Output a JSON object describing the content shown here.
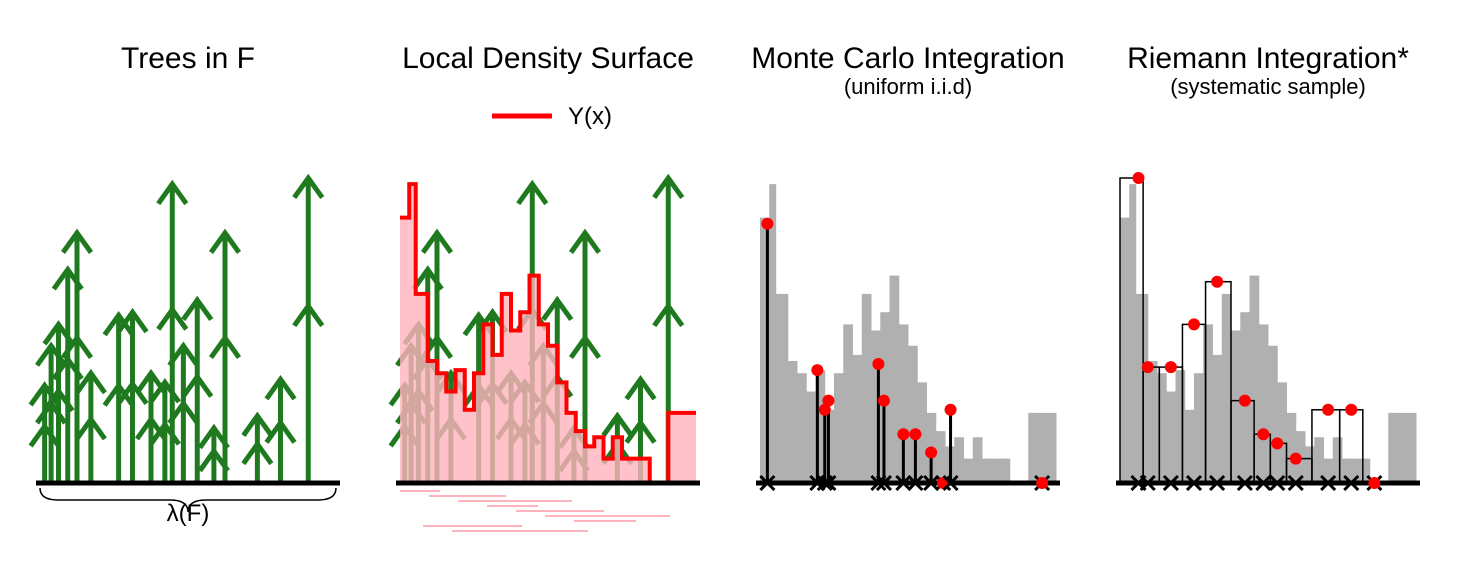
{
  "colors": {
    "tree": "#1f7a1f",
    "surface_line": "#ff0000",
    "surface_fill": "#ffb3bd",
    "hist_fill": "#b0b0b0",
    "point": "#ff0000",
    "axis": "#000000"
  },
  "panels": [
    {
      "title": "Trees in F",
      "subtitle": ""
    },
    {
      "title": "Local Density Surface",
      "subtitle": ""
    },
    {
      "title": "Monte Carlo Integration",
      "subtitle": "(uniform i.i.d)"
    },
    {
      "title": "Riemann Integration*",
      "subtitle": "(systematic sample)"
    }
  ],
  "legend": {
    "label": "Y(x)"
  },
  "brace_label": "λ(F)",
  "chart_data": {
    "type": "diagram",
    "trees": [
      {
        "x": 0.5,
        "h": 0.32
      },
      {
        "x": 1.2,
        "h": 0.45
      },
      {
        "x": 2.0,
        "h": 0.52
      },
      {
        "x": 3.0,
        "h": 0.7
      },
      {
        "x": 4.0,
        "h": 0.82
      },
      {
        "x": 5.5,
        "h": 0.36
      },
      {
        "x": 8.5,
        "h": 0.55
      },
      {
        "x": 10.0,
        "h": 0.56
      },
      {
        "x": 12.0,
        "h": 0.36
      },
      {
        "x": 13.5,
        "h": 0.33
      },
      {
        "x": 14.3,
        "h": 0.98
      },
      {
        "x": 15.5,
        "h": 0.45
      },
      {
        "x": 17.0,
        "h": 0.6
      },
      {
        "x": 18.8,
        "h": 0.18
      },
      {
        "x": 20.0,
        "h": 0.82
      },
      {
        "x": 23.5,
        "h": 0.22
      },
      {
        "x": 26.0,
        "h": 0.34
      },
      {
        "x": 29.0,
        "h": 1.0
      }
    ],
    "surface_steps": [
      {
        "x0": 0.0,
        "x1": 1.0,
        "y": 0.87
      },
      {
        "x0": 1.0,
        "x1": 1.7,
        "y": 0.98
      },
      {
        "x0": 1.7,
        "x1": 2.1,
        "y": 0.62
      },
      {
        "x0": 2.1,
        "x1": 3.0,
        "y": 0.62
      },
      {
        "x0": 3.0,
        "x1": 4.0,
        "y": 0.4
      },
      {
        "x0": 4.0,
        "x1": 5.0,
        "y": 0.36
      },
      {
        "x0": 5.0,
        "x1": 6.0,
        "y": 0.3
      },
      {
        "x0": 6.0,
        "x1": 7.0,
        "y": 0.37
      },
      {
        "x0": 7.0,
        "x1": 8.0,
        "y": 0.24
      },
      {
        "x0": 8.0,
        "x1": 9.0,
        "y": 0.36
      },
      {
        "x0": 9.0,
        "x1": 10.0,
        "y": 0.52
      },
      {
        "x0": 10.0,
        "x1": 11.0,
        "y": 0.42
      },
      {
        "x0": 11.0,
        "x1": 12.0,
        "y": 0.62
      },
      {
        "x0": 12.0,
        "x1": 13.0,
        "y": 0.5
      },
      {
        "x0": 13.0,
        "x1": 14.0,
        "y": 0.56
      },
      {
        "x0": 14.0,
        "x1": 15.0,
        "y": 0.68
      },
      {
        "x0": 15.0,
        "x1": 16.0,
        "y": 0.52
      },
      {
        "x0": 16.0,
        "x1": 17.0,
        "y": 0.45
      },
      {
        "x0": 17.0,
        "x1": 18.0,
        "y": 0.33
      },
      {
        "x0": 18.0,
        "x1": 19.0,
        "y": 0.23
      },
      {
        "x0": 19.0,
        "x1": 20.0,
        "y": 0.17
      },
      {
        "x0": 20.0,
        "x1": 21.0,
        "y": 0.12
      },
      {
        "x0": 21.0,
        "x1": 22.0,
        "y": 0.15
      },
      {
        "x0": 22.0,
        "x1": 23.0,
        "y": 0.08
      },
      {
        "x0": 23.0,
        "x1": 24.0,
        "y": 0.15
      },
      {
        "x0": 24.0,
        "x1": 25.0,
        "y": 0.08
      },
      {
        "x0": 25.0,
        "x1": 26.0,
        "y": 0.08
      },
      {
        "x0": 26.0,
        "x1": 27.0,
        "y": 0.08
      },
      {
        "x0": 27.0,
        "x1": 28.0,
        "y": 0.0
      },
      {
        "x0": 28.0,
        "x1": 29.0,
        "y": 0.0
      },
      {
        "x0": 29.0,
        "x1": 30.0,
        "y": 0.23
      },
      {
        "x0": 30.0,
        "x1": 32.0,
        "y": 0.23
      }
    ],
    "x_range": [
      0,
      32
    ],
    "mc_samples": [
      {
        "x": 0.8,
        "y": 0.85
      },
      {
        "x": 6.2,
        "y": 0.37
      },
      {
        "x": 7.0,
        "y": 0.24
      },
      {
        "x": 7.4,
        "y": 0.27
      },
      {
        "x": 12.8,
        "y": 0.39
      },
      {
        "x": 13.4,
        "y": 0.27
      },
      {
        "x": 15.5,
        "y": 0.16
      },
      {
        "x": 16.8,
        "y": 0.16
      },
      {
        "x": 18.5,
        "y": 0.1
      },
      {
        "x": 19.8,
        "y": 0.0
      },
      {
        "x": 20.6,
        "y": 0.24
      },
      {
        "x": 30.5,
        "y": 0.0
      }
    ],
    "riemann_samples": [
      {
        "x": 2.0,
        "y": 1.0
      },
      {
        "x": 3.0,
        "y": 0.38
      },
      {
        "x": 5.5,
        "y": 0.38
      },
      {
        "x": 8.0,
        "y": 0.52
      },
      {
        "x": 10.5,
        "y": 0.66
      },
      {
        "x": 13.5,
        "y": 0.27
      },
      {
        "x": 15.5,
        "y": 0.16
      },
      {
        "x": 17.0,
        "y": 0.13
      },
      {
        "x": 19.0,
        "y": 0.08
      },
      {
        "x": 22.5,
        "y": 0.24
      },
      {
        "x": 25.0,
        "y": 0.24
      },
      {
        "x": 27.5,
        "y": 0.0
      }
    ]
  }
}
